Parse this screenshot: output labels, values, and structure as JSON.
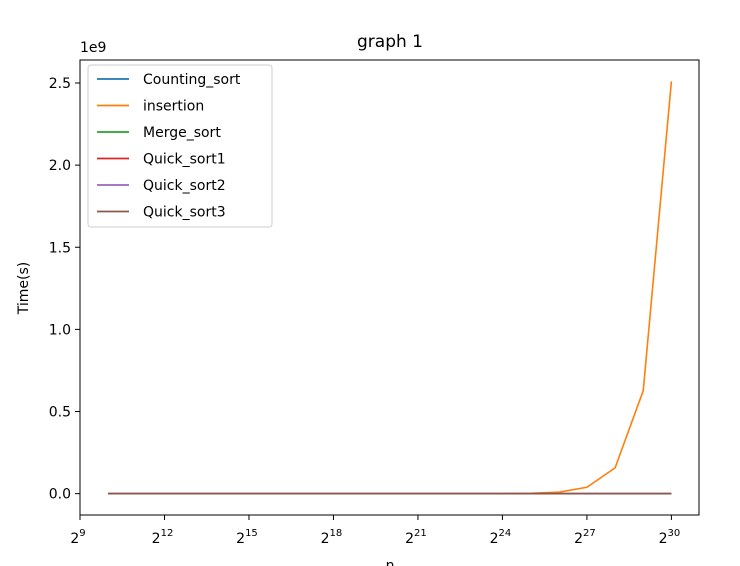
{
  "chart_data": {
    "type": "line",
    "title": "graph 1",
    "xlabel": "n",
    "ylabel": "Time(s)",
    "y_scale_note": "1e9",
    "x_scale": "log2",
    "xlim": [
      9,
      30.98
    ],
    "ylim": [
      -0.13,
      2.64
    ],
    "x_ticks": [
      {
        "exp": 9,
        "base": "2",
        "sup": "9"
      },
      {
        "exp": 12,
        "base": "2",
        "sup": "12"
      },
      {
        "exp": 15,
        "base": "2",
        "sup": "15"
      },
      {
        "exp": 18,
        "base": "2",
        "sup": "18"
      },
      {
        "exp": 21,
        "base": "2",
        "sup": "21"
      },
      {
        "exp": 24,
        "base": "2",
        "sup": "24"
      },
      {
        "exp": 27,
        "base": "2",
        "sup": "27"
      },
      {
        "exp": 30,
        "base": "2",
        "sup": "30"
      }
    ],
    "y_ticks": [
      {
        "value": 0.0,
        "label": "0.0"
      },
      {
        "value": 0.5,
        "label": "0.5"
      },
      {
        "value": 1.0,
        "label": "1.0"
      },
      {
        "value": 1.5,
        "label": "1.5"
      },
      {
        "value": 2.0,
        "label": "2.0"
      },
      {
        "value": 2.5,
        "label": "2.5"
      }
    ],
    "x": [
      1024,
      2048,
      4096,
      8192,
      16384,
      32768,
      65536,
      131072,
      262144,
      524288,
      1048576,
      2097152,
      4194304,
      8388608,
      16777216,
      33554432,
      67108864,
      134217728,
      268435456,
      536870912,
      1073741824
    ],
    "legend_position": "top-left",
    "series": [
      {
        "name": "Counting_sort",
        "color": "#1f77b4",
        "values": [
          0,
          0,
          0,
          0,
          0,
          0,
          0,
          0,
          0,
          0,
          0,
          0,
          0,
          0,
          0,
          0,
          0,
          0,
          0,
          0,
          0
        ]
      },
      {
        "name": "insertion",
        "color": "#ff7f0e",
        "values": [
          0,
          0,
          0,
          0,
          0,
          0,
          0,
          0,
          0,
          0,
          0,
          0,
          0,
          0,
          0,
          0.002,
          0.009,
          0.039,
          0.157,
          0.627,
          2.51
        ]
      },
      {
        "name": "Merge_sort",
        "color": "#2ca02c",
        "values": [
          0,
          0,
          0,
          0,
          0,
          0,
          0,
          0,
          0,
          0,
          0,
          0,
          0,
          0,
          0,
          0,
          0,
          0,
          0,
          0,
          0
        ]
      },
      {
        "name": "Quick_sort1",
        "color": "#d62728",
        "values": [
          0,
          0,
          0,
          0,
          0,
          0,
          0,
          0,
          0,
          0,
          0,
          0,
          0,
          0,
          0,
          0,
          0,
          0,
          0,
          0,
          0
        ]
      },
      {
        "name": "Quick_sort2",
        "color": "#9467bd",
        "values": [
          0,
          0,
          0,
          0,
          0,
          0,
          0,
          0,
          0,
          0,
          0,
          0,
          0,
          0,
          0,
          0,
          0,
          0,
          0,
          0,
          0
        ]
      },
      {
        "name": "Quick_sort3",
        "color": "#8c564b",
        "values": [
          0,
          0,
          0,
          0,
          0,
          0,
          0,
          0,
          0,
          0,
          0,
          0,
          0,
          0,
          0,
          0,
          0,
          0,
          0,
          0,
          0
        ]
      }
    ]
  }
}
